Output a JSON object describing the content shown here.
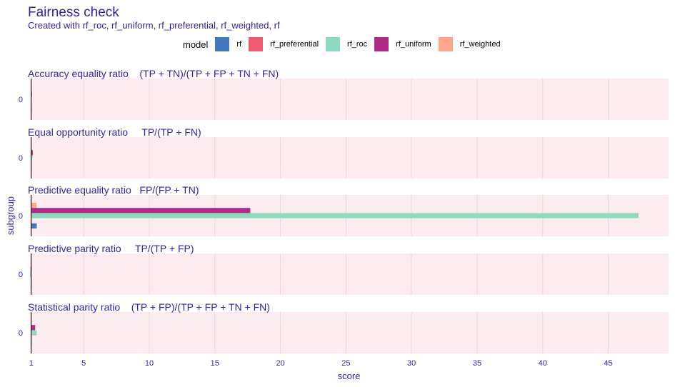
{
  "title": "Fairness check",
  "subtitle": "Created with rf_roc, rf_uniform, rf_preferential, rf_weighted, rf",
  "legend": {
    "title": "model",
    "items": [
      {
        "name": "rf",
        "color": "#4378bf"
      },
      {
        "name": "rf_preferential",
        "color": "#f05a71"
      },
      {
        "name": "rf_roc",
        "color": "#8bdcbe"
      },
      {
        "name": "rf_uniform",
        "color": "#ae2c87"
      },
      {
        "name": "rf_weighted",
        "color": "#ffa58c"
      }
    ]
  },
  "chart_data": {
    "type": "bar",
    "orientation": "horizontal",
    "title": "Fairness check",
    "subtitle": "Created with rf_roc, rf_uniform, rf_preferential, rf_weighted, rf",
    "xlabel": "score",
    "ylabel": "subgroup",
    "xlim": [
      0.85,
      49.6
    ],
    "baseline": 1,
    "x_ticks": [
      1,
      5,
      10,
      15,
      20,
      25,
      30,
      35,
      40,
      45
    ],
    "legend_position": "top",
    "grid": true,
    "category": "0",
    "series_order": [
      "rf_weighted",
      "rf_uniform",
      "rf_roc",
      "rf_preferential",
      "rf"
    ],
    "panels": [
      {
        "label": "Accuracy equality ratio    (TP + TN)/(TP + FP + TN + FN)",
        "values": {
          "rf": 1.0,
          "rf_preferential": 1.0,
          "rf_roc": 1.0,
          "rf_uniform": 1.05,
          "rf_weighted": 1.0
        }
      },
      {
        "label": "Equal opportunity ratio     TP/(TP + FN)",
        "values": {
          "rf": 1.0,
          "rf_preferential": 1.0,
          "rf_roc": 1.08,
          "rf_uniform": 1.12,
          "rf_weighted": 1.0
        }
      },
      {
        "label": "Predictive equality ratio   FP/(FP + TN)",
        "values": {
          "rf": 1.42,
          "rf_preferential": 1.0,
          "rf_roc": 47.3,
          "rf_uniform": 17.7,
          "rf_weighted": 1.4
        }
      },
      {
        "label": "Predictive parity ratio     TP/(TP + FP)",
        "values": {
          "rf": 1.0,
          "rf_preferential": 1.0,
          "rf_roc": 0.9,
          "rf_uniform": 0.95,
          "rf_weighted": 1.0
        }
      },
      {
        "label": "Statistical parity ratio    (TP + FP)/(TP + FP + TN + FN)",
        "values": {
          "rf": 1.0,
          "rf_preferential": 1.0,
          "rf_roc": 1.42,
          "rf_uniform": 1.3,
          "rf_weighted": 1.0
        }
      }
    ]
  }
}
